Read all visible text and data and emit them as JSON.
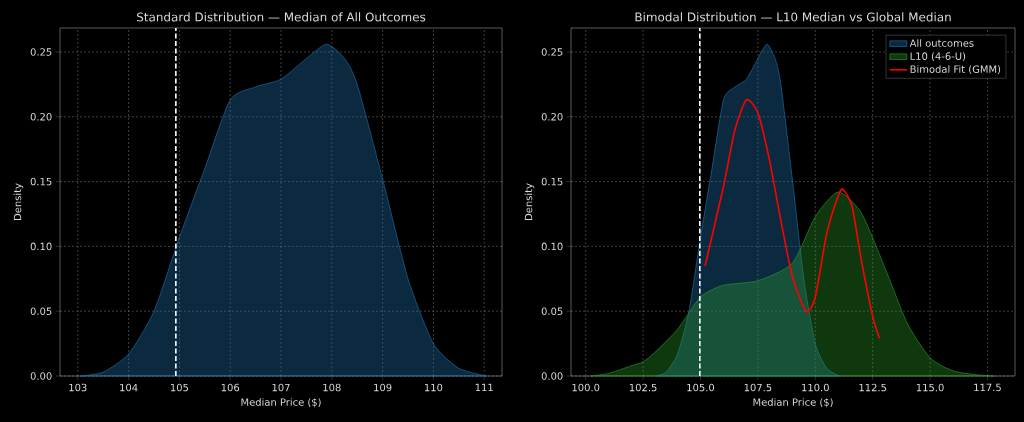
{
  "chart_data": [
    {
      "type": "area",
      "title": "Standard Distribution — Median of All Outcomes",
      "xlabel": "Median Price ($)",
      "ylabel": "Density",
      "xlim": [
        102.65,
        111.35
      ],
      "ylim": [
        0,
        0.2685
      ],
      "xticks": [
        103,
        104,
        105,
        106,
        107,
        108,
        109,
        110,
        111
      ],
      "yticks": [
        {
          "value": 0,
          "label": "0.00"
        },
        {
          "value": 0.05,
          "label": "0.05"
        },
        {
          "value": 0.1,
          "label": "0.10"
        },
        {
          "value": 0.15,
          "label": "0.15"
        },
        {
          "value": 0.2,
          "label": "0.20"
        },
        {
          "value": 0.25,
          "label": "0.25"
        }
      ],
      "grid": true,
      "ref_lines": [
        {
          "axis": "x",
          "value": 104.93,
          "color": "#ffffff",
          "line_style": "dashed"
        }
      ],
      "series": [
        {
          "color": "#1f77b4",
          "x": [
            103.05,
            103.5,
            104,
            104.5,
            105,
            105.5,
            106,
            106.5,
            107,
            107.5,
            107.9,
            108.25,
            108.5,
            109,
            109.5,
            110,
            110.5,
            111.05
          ],
          "values": [
            0,
            0.003,
            0.017,
            0.05,
            0.107,
            0.16,
            0.213,
            0.223,
            0.229,
            0.245,
            0.256,
            0.245,
            0.225,
            0.152,
            0.075,
            0.025,
            0.006,
            0
          ]
        }
      ]
    },
    {
      "type": "area",
      "title": "Bimodal Distribution — L10 Median vs Global Median",
      "xlabel": "Median Price ($)",
      "ylabel": "Density",
      "xlim": [
        99.36,
        118.7
      ],
      "ylim": [
        0,
        0.2685
      ],
      "xticks": [
        {
          "value": 100,
          "label": "100.0"
        },
        {
          "value": 102.5,
          "label": "102.5"
        },
        {
          "value": 105,
          "label": "105.0"
        },
        {
          "value": 107.5,
          "label": "107.5"
        },
        {
          "value": 110,
          "label": "110.0"
        },
        {
          "value": 112.5,
          "label": "112.5"
        },
        {
          "value": 115,
          "label": "115.0"
        },
        {
          "value": 117.5,
          "label": "117.5"
        }
      ],
      "yticks": [
        {
          "value": 0,
          "label": "0.00"
        },
        {
          "value": 0.05,
          "label": "0.05"
        },
        {
          "value": 0.1,
          "label": "0.10"
        },
        {
          "value": 0.15,
          "label": "0.15"
        },
        {
          "value": 0.2,
          "label": "0.20"
        },
        {
          "value": 0.25,
          "label": "0.25"
        }
      ],
      "grid": true,
      "legend": "top right",
      "ref_lines": [
        {
          "axis": "x",
          "value": 104.97,
          "color": "#ffffff",
          "line_style": "dashed"
        }
      ],
      "series": [
        {
          "name": "All outcomes",
          "color": "#1f77b4",
          "x": [
            103.05,
            103.5,
            104,
            104.5,
            105,
            105.5,
            106,
            106.5,
            107,
            107.5,
            107.9,
            108.25,
            108.5,
            109,
            109.5,
            110,
            110.5,
            111.05
          ],
          "values": [
            0,
            0.003,
            0.017,
            0.05,
            0.107,
            0.16,
            0.213,
            0.223,
            0.229,
            0.245,
            0.256,
            0.245,
            0.225,
            0.152,
            0.075,
            0.025,
            0.006,
            0
          ]
        },
        {
          "name": "L10 (4-6-U)",
          "color": "#2ca02c",
          "x": [
            100.2,
            101,
            102,
            102.5,
            103,
            104,
            105,
            106,
            107.5,
            109,
            110,
            111,
            112,
            113,
            114,
            115,
            116,
            117,
            117.8
          ],
          "values": [
            0,
            0.002,
            0.008,
            0.011,
            0.018,
            0.036,
            0.061,
            0.07,
            0.0735,
            0.087,
            0.123,
            0.142,
            0.126,
            0.085,
            0.041,
            0.014,
            0.004,
            0.001,
            0
          ]
        },
        {
          "name": "Bimodal Fit (GMM)",
          "type": "line",
          "color": "#ff0000",
          "x": [
            105.2,
            106,
            106.5,
            107,
            107.5,
            108,
            108.5,
            109,
            109.6,
            110,
            110.5,
            111,
            111.2,
            111.6,
            112,
            112.5,
            112.8
          ],
          "values": [
            0.085,
            0.146,
            0.19,
            0.213,
            0.203,
            0.167,
            0.12,
            0.077,
            0.0498,
            0.061,
            0.11,
            0.139,
            0.144,
            0.131,
            0.09,
            0.046,
            0.029
          ]
        }
      ]
    }
  ]
}
